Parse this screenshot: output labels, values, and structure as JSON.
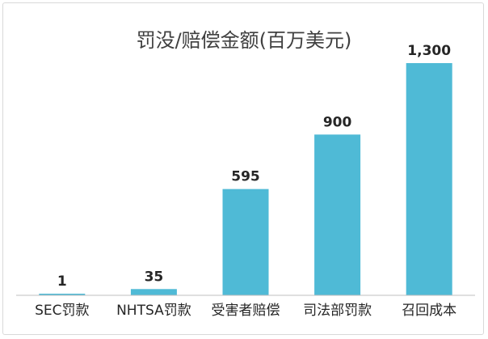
{
  "chart_data": {
    "type": "bar",
    "title": "罚没/赔偿金额(百万美元)",
    "xlabel": "",
    "ylabel": "",
    "categories": [
      "SEC罚款",
      "NHTSA罚款",
      "受害者赔偿",
      "司法部罚款",
      "召回成本"
    ],
    "values": [
      1,
      35,
      595,
      900,
      1300
    ],
    "data_labels": [
      "1",
      "35",
      "595",
      "900",
      "1,300"
    ],
    "ylim": [
      0,
      1300
    ],
    "grid": false,
    "legend": "none",
    "colors": {
      "bar": "#4fbad6",
      "axis": "#bfbfbf",
      "text": "#262626",
      "title": "#404040"
    }
  }
}
